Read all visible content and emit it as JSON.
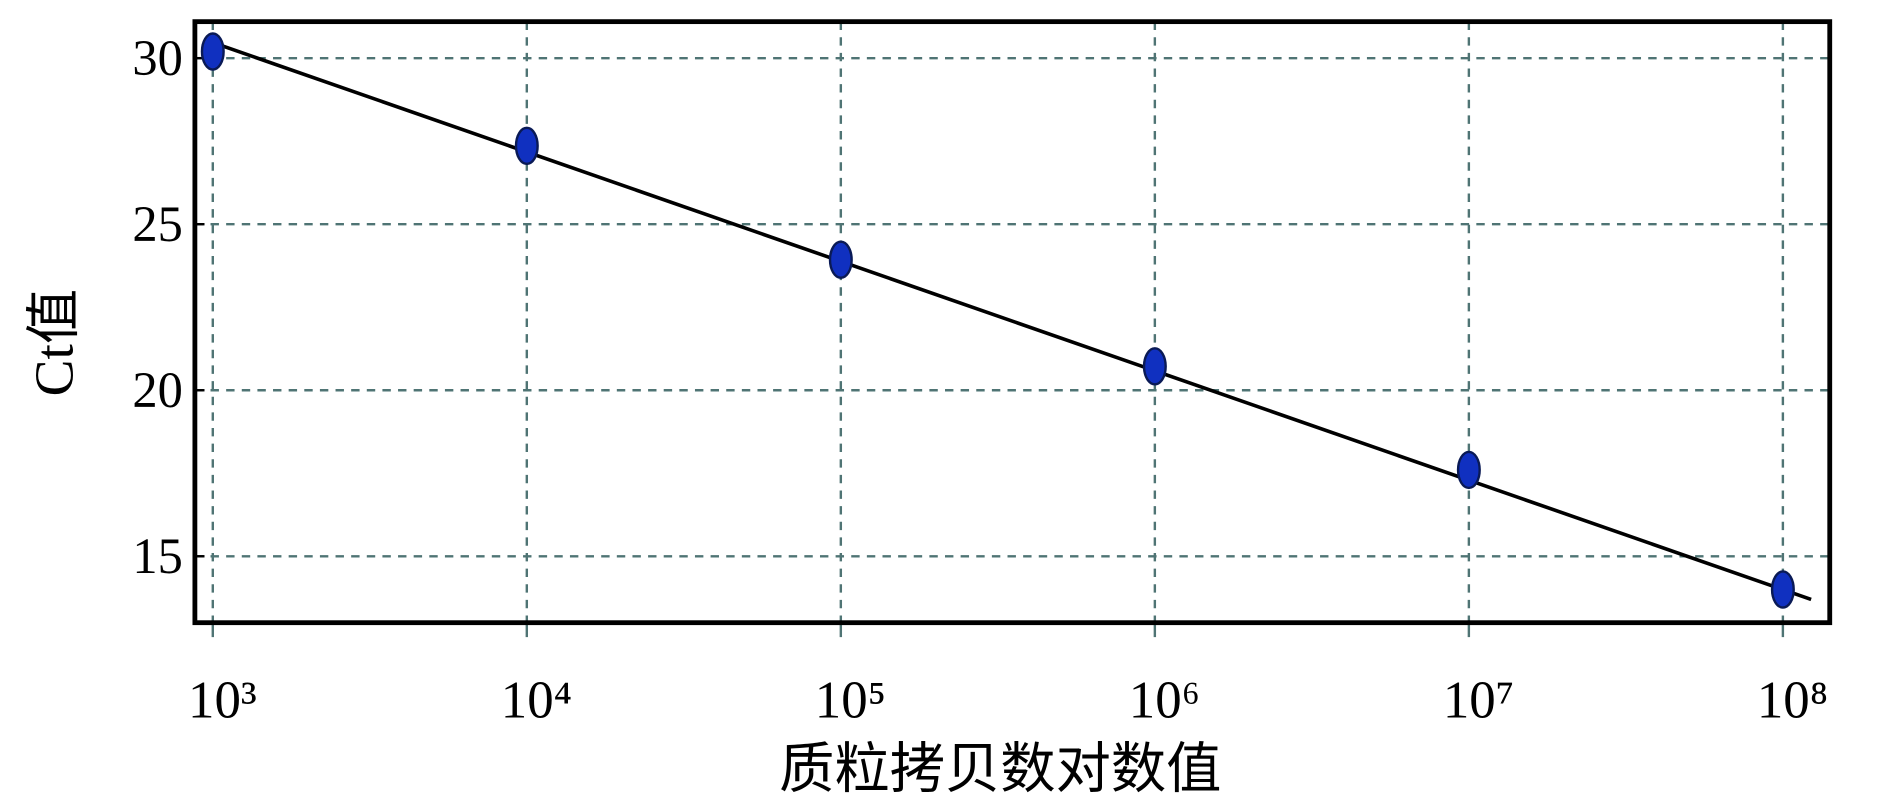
{
  "chart_data": {
    "type": "scatter",
    "x_label": "质粒拷贝数对数值",
    "y_label": "Ct值",
    "x_log": true,
    "grid": true,
    "color": "#1030c0",
    "x": [
      1000,
      10000,
      100000,
      1000000,
      10000000,
      100000000
    ],
    "values": [
      30.2,
      27.36,
      23.93,
      20.72,
      17.6,
      14.0
    ],
    "fit_line": {
      "x": [
        1000,
        123000000
      ],
      "values": [
        30.47,
        13.7
      ],
      "color": "#000000"
    },
    "xlim": [
      877,
      141000000
    ],
    "ylim": [
      13.0,
      31.1
    ],
    "xticks": [
      {
        "value": 1000,
        "label": "10³"
      },
      {
        "value": 10000,
        "label": "10⁴"
      },
      {
        "value": 100000,
        "label": "10⁵"
      },
      {
        "value": 1000000,
        "label": "10⁶"
      },
      {
        "value": 10000000,
        "label": "10⁷"
      },
      {
        "value": 100000000,
        "label": "10⁸"
      }
    ],
    "yticks": [
      15,
      20,
      25,
      30
    ]
  }
}
